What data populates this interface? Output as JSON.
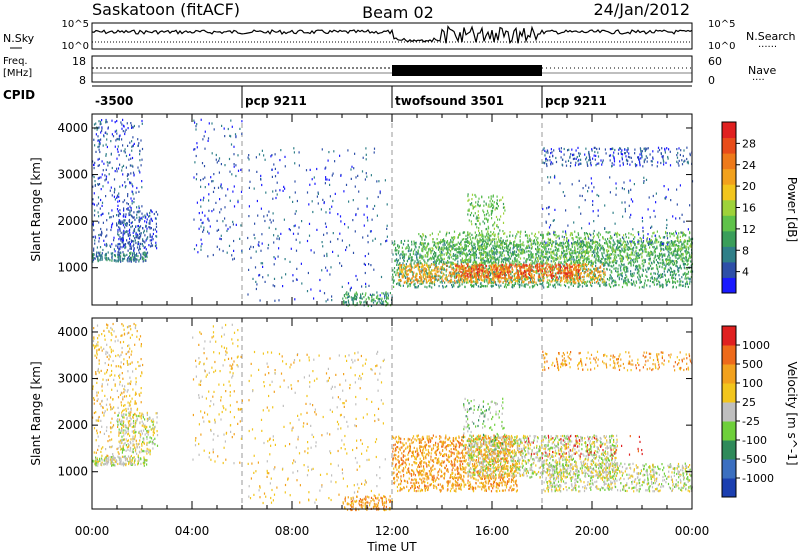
{
  "header": {
    "station": "Saskatoon (fitACF)",
    "beam": "Beam 02",
    "date": "24/Jan/2012"
  },
  "side_labels": {
    "nsky": "N.Sky",
    "freq_line1": "Freq.",
    "freq_line2": "[MHz]",
    "cpid": "CPID",
    "nsearch": "N.Search",
    "nsearch_marker": "......",
    "nave": "Nave",
    "nave_marker": "....",
    "noise_tick_top": "10^5",
    "noise_tick_bottom": "10^0",
    "freq_tick_top": "18",
    "freq_tick_bottom": "8",
    "nave_tick_top": "60",
    "nave_tick_bottom": "0"
  },
  "cpid_segments": [
    {
      "label": "-3500",
      "start": 0,
      "end": 6
    },
    {
      "label": "pcp 9211",
      "start": 6,
      "end": 12
    },
    {
      "label": "twofsound 3501",
      "start": 12,
      "end": 18
    },
    {
      "label": "pcp 9211",
      "start": 18,
      "end": 24
    }
  ],
  "chart_data": [
    {
      "type": "heatmap",
      "name": "power",
      "ylabel": "Slant Range [km]",
      "xlabel": "Time UT",
      "x_ticks": [
        "00:00",
        "04:00",
        "08:00",
        "12:00",
        "16:00",
        "20:00",
        "00:00"
      ],
      "xlim_hours": [
        0,
        24
      ],
      "ylim": [
        200,
        4300
      ],
      "y_ticks": [
        1000,
        2000,
        3000,
        4000
      ],
      "colorbar": {
        "label": "Power [dB]",
        "ticks": [
          "28",
          "24",
          "20",
          "16",
          "12",
          "8",
          "4"
        ],
        "colors": [
          "#1a1aff",
          "#2e4fa8",
          "#2f7f88",
          "#3a9e5a",
          "#5fc24a",
          "#9ed23a",
          "#f2c51d",
          "#f2a11d",
          "#ee7a1a",
          "#e84c1a",
          "#e02020"
        ]
      },
      "regions": [
        {
          "t0": 0.0,
          "t1": 2.2,
          "r0": 1150,
          "r1": 1350,
          "level": 2,
          "density": 0.9
        },
        {
          "t0": 0.0,
          "t1": 2.0,
          "r0": 1350,
          "r1": 4200,
          "level": 1,
          "density": 0.15
        },
        {
          "t0": 1.0,
          "t1": 2.6,
          "r0": 1400,
          "r1": 2300,
          "level": 1,
          "density": 0.35
        },
        {
          "t0": 4.0,
          "t1": 6.0,
          "r0": 1200,
          "r1": 4200,
          "level": 1,
          "density": 0.06
        },
        {
          "t0": 6.2,
          "t1": 11.8,
          "r0": 300,
          "r1": 3600,
          "level": 1,
          "density": 0.04
        },
        {
          "t0": 10.0,
          "t1": 12.0,
          "r0": 200,
          "r1": 500,
          "level": 3,
          "density": 0.5
        },
        {
          "t0": 12.0,
          "t1": 24.0,
          "r0": 600,
          "r1": 1600,
          "level": 3,
          "density": 0.45
        },
        {
          "t0": 12.2,
          "t1": 20.5,
          "r0": 700,
          "r1": 1100,
          "level": 7,
          "density": 0.55
        },
        {
          "t0": 14.5,
          "t1": 19.5,
          "r0": 800,
          "r1": 1100,
          "level": 9,
          "density": 0.5
        },
        {
          "t0": 13.0,
          "t1": 24.0,
          "r0": 1100,
          "r1": 1800,
          "level": 4,
          "density": 0.3
        },
        {
          "t0": 15.0,
          "t1": 16.5,
          "r0": 1500,
          "r1": 2600,
          "level": 4,
          "density": 0.25
        },
        {
          "t0": 18.0,
          "t1": 24.0,
          "r0": 3200,
          "r1": 3600,
          "level": 1,
          "density": 0.25
        },
        {
          "t0": 18.0,
          "t1": 24.0,
          "r0": 1500,
          "r1": 3000,
          "level": 1,
          "density": 0.04
        }
      ]
    },
    {
      "type": "heatmap",
      "name": "velocity",
      "ylabel": "Slant Range [km]",
      "xlabel": "Time UT",
      "x_ticks": [
        "00:00",
        "04:00",
        "08:00",
        "12:00",
        "16:00",
        "20:00",
        "00:00"
      ],
      "xlim_hours": [
        0,
        24
      ],
      "ylim": [
        200,
        4300
      ],
      "y_ticks": [
        1000,
        2000,
        3000,
        4000
      ],
      "colorbar": {
        "label": "Velocity [m s^-1]",
        "ticks": [
          "1000",
          "500",
          "100",
          "25",
          "-25",
          "-100",
          "-500",
          "-1000"
        ],
        "colors": [
          "#1b3fb0",
          "#3b6fc0",
          "#2f8a5a",
          "#6ecf3a",
          "#bfbfbf",
          "#f2c51d",
          "#f2a11d",
          "#ee6a1a",
          "#e02020"
        ]
      },
      "regions": [
        {
          "t0": 0.0,
          "t1": 2.2,
          "r0": 1150,
          "r1": 1350,
          "level": 4,
          "density": 0.9
        },
        {
          "t0": 0.0,
          "t1": 2.0,
          "r0": 1350,
          "r1": 4200,
          "level": 5,
          "density": 0.15
        },
        {
          "t0": 1.0,
          "t1": 2.6,
          "r0": 1400,
          "r1": 2300,
          "level": 4,
          "density": 0.35
        },
        {
          "t0": 4.0,
          "t1": 6.0,
          "r0": 1200,
          "r1": 4200,
          "level": 5,
          "density": 0.06
        },
        {
          "t0": 6.2,
          "t1": 11.8,
          "r0": 300,
          "r1": 3600,
          "level": 5,
          "density": 0.04
        },
        {
          "t0": 10.0,
          "t1": 12.0,
          "r0": 200,
          "r1": 500,
          "level": 6,
          "density": 0.5
        },
        {
          "t0": 12.0,
          "t1": 17.0,
          "r0": 600,
          "r1": 1800,
          "level": 6,
          "density": 0.5
        },
        {
          "t0": 15.0,
          "t1": 21.0,
          "r0": 900,
          "r1": 1800,
          "level": 4,
          "density": 0.5
        },
        {
          "t0": 18.0,
          "t1": 24.0,
          "r0": 600,
          "r1": 1200,
          "level": 4,
          "density": 0.4
        },
        {
          "t0": 17.0,
          "t1": 22.0,
          "r0": 1300,
          "r1": 1800,
          "level": 8,
          "density": 0.06
        },
        {
          "t0": 18.0,
          "t1": 24.0,
          "r0": 3200,
          "r1": 3600,
          "level": 6,
          "density": 0.2
        },
        {
          "t0": 14.8,
          "t1": 16.5,
          "r0": 1500,
          "r1": 2600,
          "level": 3,
          "density": 0.15
        }
      ]
    }
  ]
}
